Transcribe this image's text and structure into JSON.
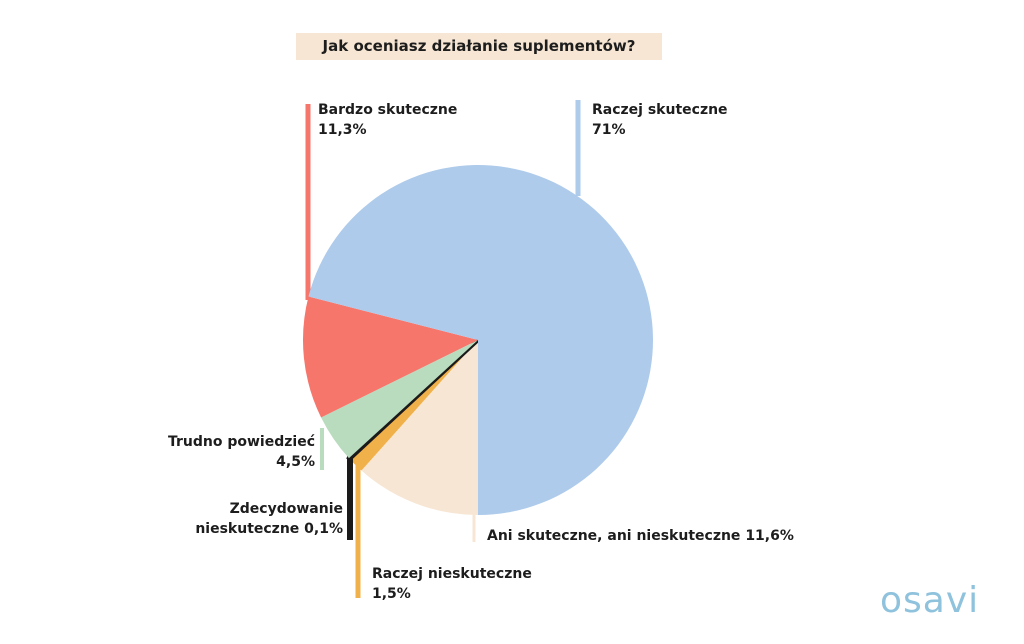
{
  "chart_data": {
    "type": "pie",
    "title": "Jak oceniasz działanie suplementów?",
    "categories": [
      "Ani skuteczne, ani nieskuteczne",
      "Raczej nieskuteczne",
      "Zdecydowanie nieskuteczne",
      "Trudno powiedzieć",
      "Bardzo skuteczne",
      "Raczej skuteczne"
    ],
    "values": [
      11.6,
      1.5,
      0.1,
      4.5,
      11.3,
      71
    ],
    "value_labels": [
      "11,6%",
      "1,5%",
      "0,1%",
      "4,5%",
      "11,3%",
      "71%"
    ],
    "colors": [
      "#f7e6d3",
      "#f0b04a",
      "#1a1a1a",
      "#b9dcbf",
      "#f6766c",
      "#aecbeb"
    ]
  },
  "logo": "osavi"
}
